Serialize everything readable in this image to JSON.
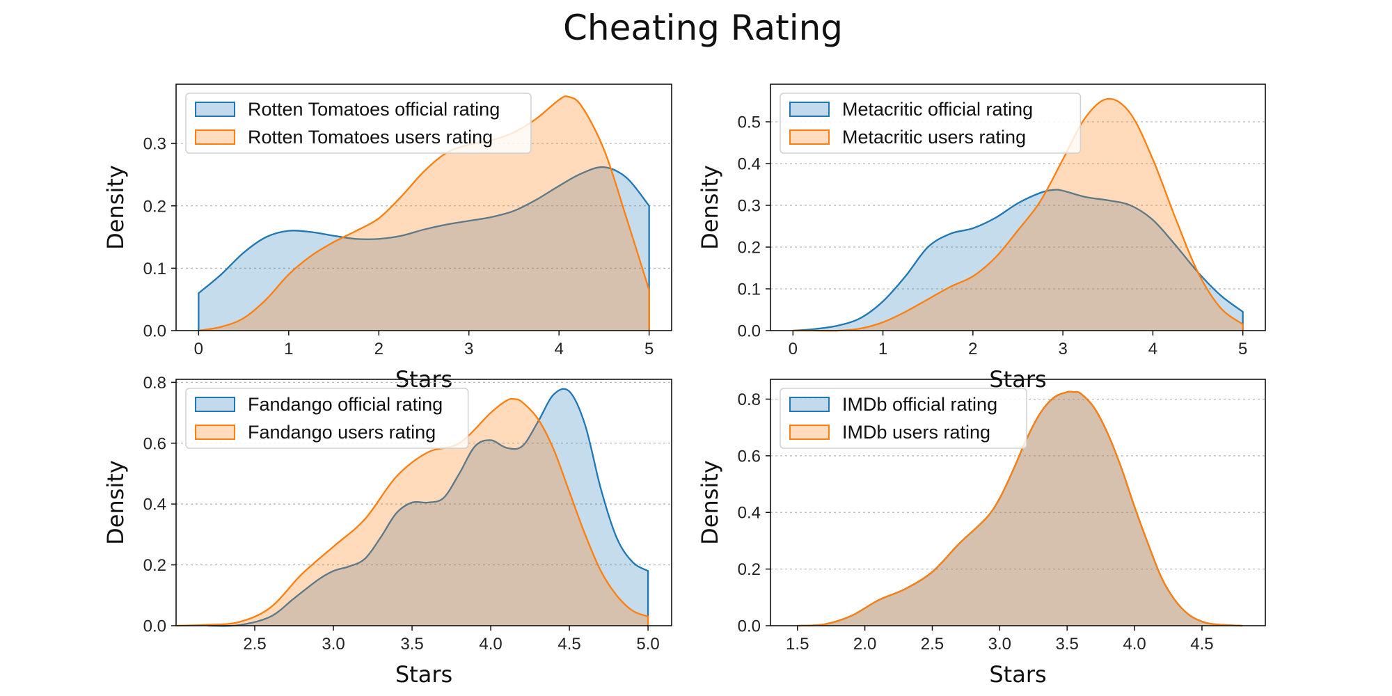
{
  "title": "Cheating Rating",
  "colors": {
    "official": "#1f77b4",
    "users": "#ff7f0e"
  },
  "chart_data": [
    {
      "type": "area",
      "subplot": "top-left",
      "xlabel": "Stars",
      "ylabel": "Density",
      "xlim": [
        -0.25,
        5.25
      ],
      "ylim": [
        0,
        0.395
      ],
      "xticks": [
        0,
        1,
        2,
        3,
        4,
        5
      ],
      "yticks": [
        0.0,
        0.1,
        0.2,
        0.3
      ],
      "tick_decimals": 1,
      "grid": "y-dotted",
      "legend_position": "top-left",
      "series": [
        {
          "name": "Rotten Tomatoes official rating",
          "color": "#1f77b4",
          "x": [
            0,
            0.25,
            0.5,
            0.75,
            1.0,
            1.25,
            1.5,
            1.75,
            2.0,
            2.25,
            2.5,
            2.75,
            3.0,
            3.25,
            3.5,
            3.75,
            4.0,
            4.25,
            4.5,
            4.75,
            5.0
          ],
          "y": [
            0.06,
            0.09,
            0.125,
            0.15,
            0.16,
            0.158,
            0.152,
            0.147,
            0.147,
            0.152,
            0.162,
            0.17,
            0.176,
            0.182,
            0.192,
            0.21,
            0.232,
            0.252,
            0.262,
            0.245,
            0.2
          ]
        },
        {
          "name": "Rotten Tomatoes users rating",
          "color": "#ff7f0e",
          "x": [
            0,
            0.25,
            0.5,
            0.75,
            1.0,
            1.25,
            1.5,
            1.75,
            2.0,
            2.25,
            2.5,
            2.75,
            3.0,
            3.25,
            3.5,
            3.75,
            4.0,
            4.1,
            4.25,
            4.5,
            4.75,
            5.0
          ],
          "y": [
            0.0,
            0.006,
            0.02,
            0.05,
            0.09,
            0.12,
            0.142,
            0.16,
            0.18,
            0.215,
            0.255,
            0.285,
            0.298,
            0.305,
            0.318,
            0.34,
            0.37,
            0.375,
            0.36,
            0.29,
            0.18,
            0.065
          ]
        }
      ]
    },
    {
      "type": "area",
      "subplot": "top-right",
      "xlabel": "Stars",
      "ylabel": "Density",
      "xlim": [
        -0.25,
        5.25
      ],
      "ylim": [
        0,
        0.59
      ],
      "xticks": [
        0,
        1,
        2,
        3,
        4,
        5
      ],
      "yticks": [
        0.0,
        0.1,
        0.2,
        0.3,
        0.4,
        0.5
      ],
      "tick_decimals": 1,
      "grid": "y-dotted",
      "legend_position": "top-left",
      "series": [
        {
          "name": "Metacritic official rating",
          "color": "#1f77b4",
          "x": [
            0,
            0.25,
            0.5,
            0.75,
            1.0,
            1.25,
            1.5,
            1.75,
            2.0,
            2.25,
            2.5,
            2.75,
            2.9,
            3.0,
            3.25,
            3.5,
            3.75,
            4.0,
            4.25,
            4.5,
            4.75,
            5.0
          ],
          "y": [
            0.0,
            0.004,
            0.012,
            0.03,
            0.07,
            0.13,
            0.2,
            0.232,
            0.245,
            0.27,
            0.305,
            0.33,
            0.337,
            0.335,
            0.32,
            0.312,
            0.3,
            0.265,
            0.205,
            0.14,
            0.085,
            0.045
          ]
        },
        {
          "name": "Metacritic users rating",
          "color": "#ff7f0e",
          "x": [
            0,
            0.25,
            0.5,
            0.75,
            1.0,
            1.25,
            1.5,
            1.75,
            2.0,
            2.25,
            2.5,
            2.75,
            3.0,
            3.25,
            3.5,
            3.75,
            4.0,
            4.25,
            4.5,
            4.75,
            5.0
          ],
          "y": [
            0.0,
            0.0,
            0.0,
            0.005,
            0.02,
            0.045,
            0.075,
            0.105,
            0.13,
            0.175,
            0.24,
            0.31,
            0.41,
            0.51,
            0.555,
            0.52,
            0.41,
            0.27,
            0.14,
            0.055,
            0.015
          ]
        }
      ]
    },
    {
      "type": "area",
      "subplot": "bottom-left",
      "xlabel": "Stars",
      "ylabel": "Density",
      "xlim": [
        2.0,
        5.15
      ],
      "ylim": [
        0,
        0.81
      ],
      "xticks": [
        2.5,
        3.0,
        3.5,
        4.0,
        4.5,
        5.0
      ],
      "yticks": [
        0.0,
        0.2,
        0.4,
        0.6,
        0.8
      ],
      "tick_decimals": 1,
      "grid": "y-dotted",
      "legend_position": "top-left",
      "series": [
        {
          "name": "Fandango official rating",
          "color": "#1f77b4",
          "x": [
            2.2,
            2.4,
            2.6,
            2.75,
            2.9,
            3.0,
            3.1,
            3.2,
            3.3,
            3.4,
            3.5,
            3.6,
            3.7,
            3.8,
            3.9,
            4.0,
            4.1,
            4.2,
            4.3,
            4.4,
            4.5,
            4.6,
            4.7,
            4.8,
            4.9,
            5.0
          ],
          "y": [
            0.0,
            0.002,
            0.03,
            0.09,
            0.15,
            0.18,
            0.195,
            0.22,
            0.29,
            0.37,
            0.405,
            0.405,
            0.42,
            0.5,
            0.59,
            0.61,
            0.585,
            0.59,
            0.67,
            0.76,
            0.77,
            0.66,
            0.45,
            0.29,
            0.21,
            0.18
          ]
        },
        {
          "name": "Fandango users rating",
          "color": "#ff7f0e",
          "x": [
            2.0,
            2.2,
            2.4,
            2.6,
            2.8,
            3.0,
            3.2,
            3.4,
            3.6,
            3.8,
            4.0,
            4.1,
            4.15,
            4.2,
            4.3,
            4.4,
            4.5,
            4.6,
            4.7,
            4.8,
            4.9,
            5.0
          ],
          "y": [
            0.0,
            0.003,
            0.012,
            0.06,
            0.17,
            0.26,
            0.35,
            0.49,
            0.57,
            0.6,
            0.7,
            0.74,
            0.745,
            0.735,
            0.68,
            0.58,
            0.44,
            0.3,
            0.18,
            0.1,
            0.05,
            0.03
          ]
        }
      ]
    },
    {
      "type": "area",
      "subplot": "bottom-right",
      "xlabel": "Stars",
      "ylabel": "Density",
      "xlim": [
        1.3,
        4.97
      ],
      "ylim": [
        0,
        0.87
      ],
      "xticks": [
        1.5,
        2.0,
        2.5,
        3.0,
        3.5,
        4.0,
        4.5
      ],
      "yticks": [
        0.0,
        0.2,
        0.4,
        0.6,
        0.8
      ],
      "tick_decimals": 1,
      "grid": "y-dotted",
      "legend_position": "top-left",
      "series": [
        {
          "name": "IMDb official rating",
          "color": "#1f77b4",
          "x": [
            1.5,
            1.7,
            1.9,
            2.1,
            2.3,
            2.5,
            2.7,
            2.9,
            3.0,
            3.1,
            3.2,
            3.3,
            3.4,
            3.5,
            3.55,
            3.6,
            3.7,
            3.8,
            3.9,
            4.0,
            4.1,
            4.2,
            4.3,
            4.4,
            4.5,
            4.6,
            4.8
          ],
          "y": [
            0.0,
            0.005,
            0.035,
            0.09,
            0.13,
            0.19,
            0.29,
            0.38,
            0.45,
            0.55,
            0.66,
            0.75,
            0.805,
            0.825,
            0.825,
            0.82,
            0.77,
            0.68,
            0.56,
            0.42,
            0.29,
            0.17,
            0.09,
            0.04,
            0.015,
            0.005,
            0.0
          ]
        },
        {
          "name": "IMDb users rating",
          "color": "#ff7f0e",
          "x": [
            1.5,
            1.7,
            1.9,
            2.1,
            2.3,
            2.5,
            2.7,
            2.9,
            3.0,
            3.1,
            3.2,
            3.3,
            3.4,
            3.5,
            3.55,
            3.6,
            3.7,
            3.8,
            3.9,
            4.0,
            4.1,
            4.2,
            4.3,
            4.4,
            4.5,
            4.6,
            4.8
          ],
          "y": [
            0.0,
            0.005,
            0.035,
            0.09,
            0.13,
            0.19,
            0.29,
            0.38,
            0.45,
            0.55,
            0.66,
            0.75,
            0.805,
            0.825,
            0.825,
            0.82,
            0.77,
            0.68,
            0.56,
            0.42,
            0.29,
            0.17,
            0.09,
            0.04,
            0.015,
            0.005,
            0.0
          ]
        }
      ]
    }
  ]
}
